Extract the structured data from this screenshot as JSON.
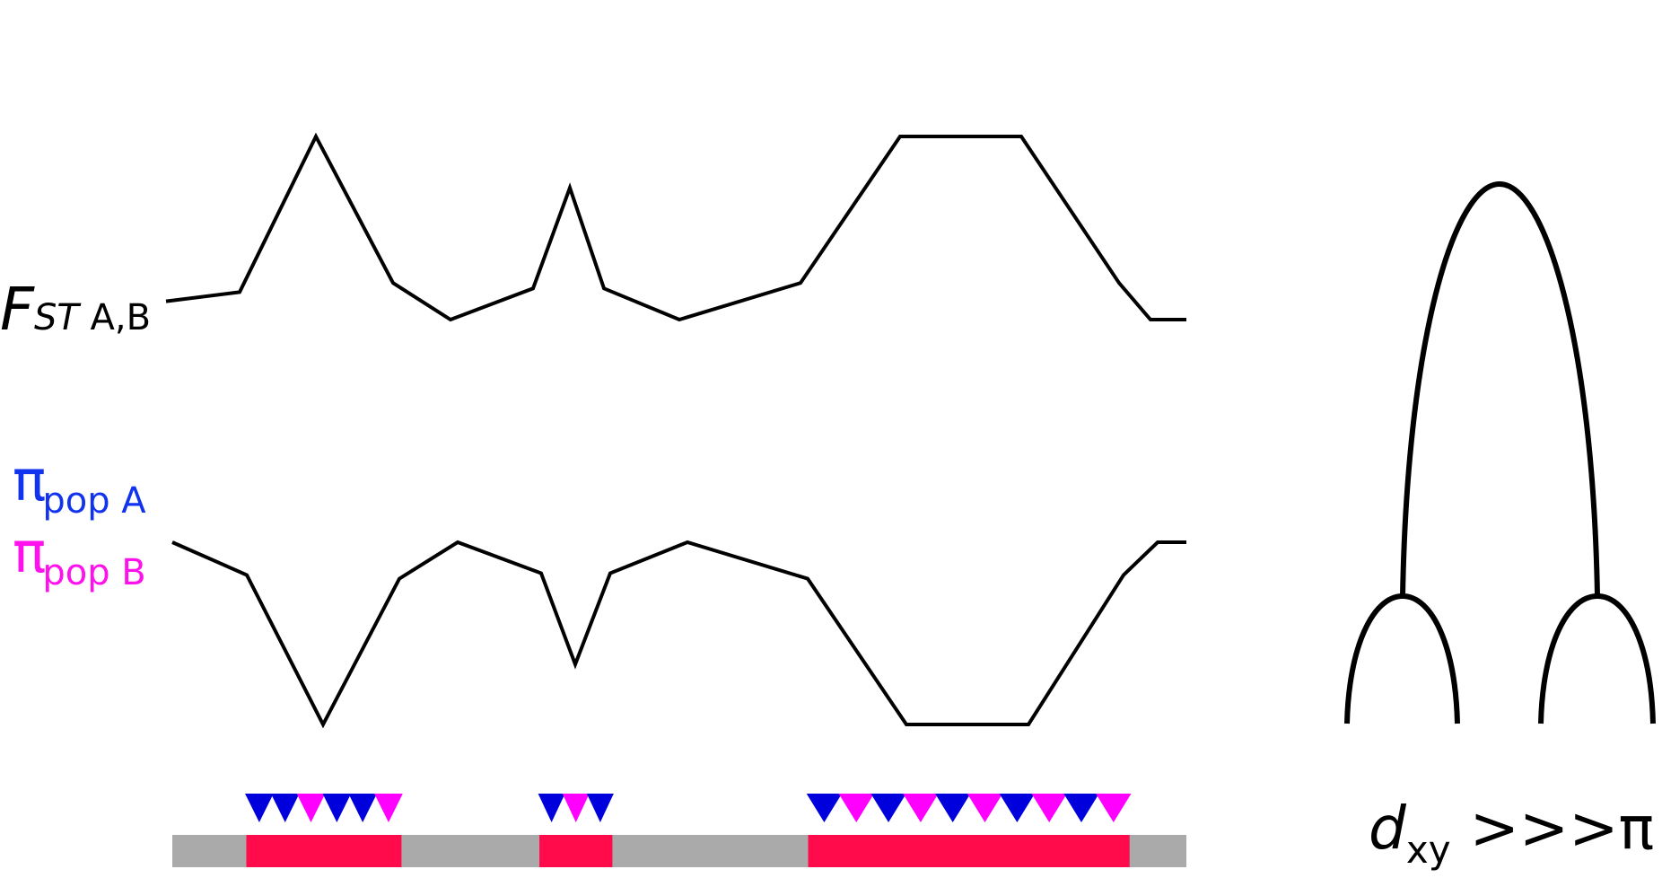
{
  "labels": {
    "fst_main": "F",
    "fst_sub_italic": "ST",
    "fst_sub_plain": " A,B",
    "pi_symbol": "π",
    "pi_a_sub": "pop A",
    "pi_b_sub": "pop B",
    "dxy_main": "d",
    "dxy_sub": "xy",
    "dxy_relation": " >>>π"
  },
  "colors": {
    "line": "#000000",
    "pop_a": "#0000dd",
    "pop_b": "#ff00ff",
    "pi_a_label": "#1133ee",
    "pi_b_label": "#ff11ee",
    "chromosome": "#aaaaaa",
    "region": "#ff0a4a"
  },
  "fst_profile_relative": [
    0.1,
    0.15,
    1.0,
    0.2,
    0.0,
    0.17,
    0.72,
    0.17,
    0.0,
    0.2,
    1.0,
    1.0,
    0.2,
    0.0,
    0.0
  ],
  "pi_profile_relative": [
    1.0,
    0.82,
    0.0,
    0.8,
    1.0,
    0.83,
    0.33,
    0.83,
    1.0,
    0.8,
    0.0,
    0.0,
    0.82,
    1.0,
    1.0
  ],
  "chromosome": {
    "regions": [
      {
        "name": "region-1",
        "start": 0.073,
        "end": 0.226
      },
      {
        "name": "region-2",
        "start": 0.362,
        "end": 0.434
      },
      {
        "name": "region-3",
        "start": 0.627,
        "end": 0.944
      }
    ]
  },
  "snp_clusters": [
    {
      "region": 1,
      "pattern": [
        "A",
        "A",
        "B",
        "A",
        "A",
        "B"
      ]
    },
    {
      "region": 2,
      "pattern": [
        "A",
        "B",
        "A"
      ]
    },
    {
      "region": 3,
      "pattern": [
        "A",
        "B",
        "A",
        "B",
        "A",
        "B",
        "A",
        "B",
        "A",
        "B"
      ]
    }
  ]
}
